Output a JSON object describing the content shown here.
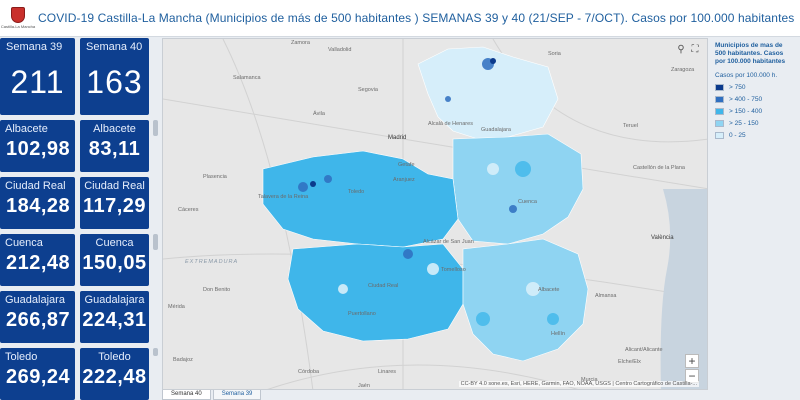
{
  "header": {
    "title": "COVID-19 Castilla-La Mancha (Municipios de más de 500 habitantes ) SEMANAS 39 y 40 (21/SEP - 7/OCT). Casos por 100.000 habitantes",
    "logo_text": "Castilla-La Mancha"
  },
  "tiles": {
    "week39": {
      "label": "Semana 39",
      "value": "211"
    },
    "week40": {
      "label": "Semana 40",
      "value": "163"
    },
    "rows": [
      {
        "left_label": "Albacete",
        "left_value": "102,98",
        "right_label": "Albacete",
        "right_value": "83,11"
      },
      {
        "left_label": "Ciudad Real",
        "left_value": "184,28",
        "right_label": "Ciudad Real",
        "right_value": "117,29"
      },
      {
        "left_label": "Cuenca",
        "left_value": "212,48",
        "right_label": "Cuenca",
        "right_value": "150,05"
      },
      {
        "left_label": "Guadalajara",
        "left_value": "266,87",
        "right_label": "Guadalajara",
        "right_value": "224,31"
      },
      {
        "left_label": "Toledo",
        "left_value": "269,24",
        "right_label": "Toledo",
        "right_value": "222,48"
      }
    ]
  },
  "map": {
    "labels": {
      "madrid": "Madrid",
      "zamora": "Zamora",
      "valladolid": "Valladolid",
      "salamanca": "Salamanca",
      "avila": "Ávila",
      "segovia": "Segovia",
      "soria": "Soria",
      "zaragoza": "Zaragoza",
      "teruel": "Teruel",
      "castellon": "Castellón de la Plana",
      "valencia": "València",
      "caceres": "Cáceres",
      "badajoz": "Badajoz",
      "merida": "Mérida",
      "plasencia": "Plasencia",
      "extremadura": "EXTREMADURA",
      "toledo": "Toledo",
      "cuenca": "Cuenca",
      "guadalajara": "Guadalajara",
      "ciudad_real": "Ciudad Real",
      "albacete": "Albacete",
      "alicante": "Alicant/Alicante",
      "cordoba": "Córdoba",
      "jaen": "Jaén",
      "linares": "Linares",
      "murcia": "Murcia",
      "elche": "Elche/Elx",
      "alcala": "Alcalá de Henares",
      "talavera": "Talavera de la Reina",
      "tomelloso": "Tomelloso",
      "puertollano": "Puertollano",
      "almansa": "Almansa",
      "hellin": "Hellín",
      "aranjuez": "Aranjuez",
      "don_benito": "Don Benito",
      "getafe": "Getafe",
      "alcazar": "Alcázar de San Juan"
    },
    "attribution": "CC-BY 4.0 sone.es, Esri, HERE, Garmin, FAO, NOAA, USGS | Centro Cartográfico de Castilla-...",
    "zoom_in": "+",
    "zoom_out": "−"
  },
  "legend": {
    "title": "Municipios de mas de 500 habitantes. Casos por 100.000 habitantes",
    "subtitle": "Casos por 100.000 h.",
    "items": [
      {
        "label": "> 750",
        "color": "#0b3a8c"
      },
      {
        "label": "> 400 - 750",
        "color": "#2f6fc0"
      },
      {
        "label": "> 150 - 400",
        "color": "#3fb6ea"
      },
      {
        "label": "> 25 - 150",
        "color": "#8fd4f2"
      },
      {
        "label": "0 - 25",
        "color": "#d6eefa"
      }
    ]
  },
  "tabs": [
    {
      "label": "Semana 40"
    },
    {
      "label": "Semana 39"
    }
  ],
  "colors": {
    "tile_bg": "#0d3f8f",
    "accent": "#1f5f9e"
  }
}
